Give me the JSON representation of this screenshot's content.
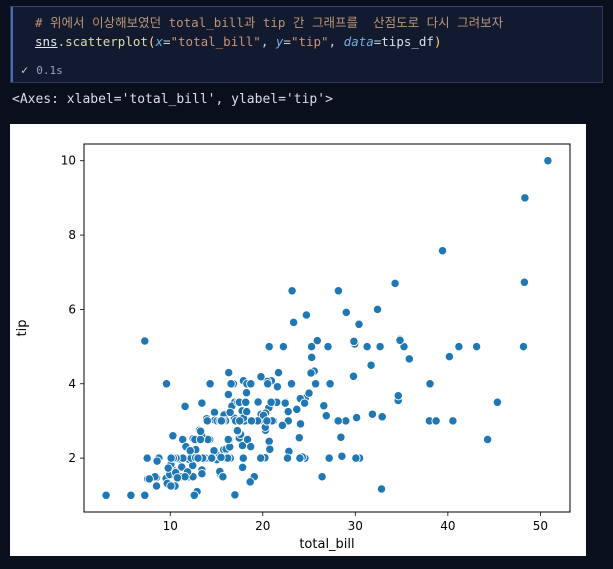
{
  "notebook": {
    "cell": {
      "exec_check": "✓",
      "exec_time": "0.1s"
    },
    "output_text": "<Axes: xlabel='total_bill', ylabel='tip'>"
  },
  "code": {
    "token_colors": {
      "comment": "#bb9577",
      "module": "#e4e6eb",
      "plain": "#d4d4d4",
      "func": "#dcdcaa",
      "paren": "#ffd866",
      "kwarg": "#74aee8",
      "op": "#d4d4d4",
      "string": "#ce9178",
      "var": "#d6deeb"
    },
    "lines": [
      [
        {
          "t": "# 위에서 이상해보였던 total_bill과 tip 간 그래프를  산점도로 다시 그려보자",
          "c": "comment"
        }
      ],
      [
        {
          "t": "sns",
          "c": "module"
        },
        {
          "t": ".",
          "c": "plain"
        },
        {
          "t": "scatterplot",
          "c": "func"
        },
        {
          "t": "(",
          "c": "paren"
        },
        {
          "t": "x",
          "c": "kwarg"
        },
        {
          "t": "=",
          "c": "op"
        },
        {
          "t": "\"total_bill\"",
          "c": "string"
        },
        {
          "t": ", ",
          "c": "plain"
        },
        {
          "t": "y",
          "c": "kwarg"
        },
        {
          "t": "=",
          "c": "op"
        },
        {
          "t": "\"tip\"",
          "c": "string"
        },
        {
          "t": ", ",
          "c": "plain"
        },
        {
          "t": "data",
          "c": "kwarg"
        },
        {
          "t": "=",
          "c": "op"
        },
        {
          "t": "tips_df",
          "c": "var"
        },
        {
          "t": ")",
          "c": "paren"
        }
      ]
    ]
  },
  "chart_data": {
    "type": "scatter",
    "title": "",
    "xlabel": "total_bill",
    "ylabel": "tip",
    "xlim": [
      0.68,
      53.2
    ],
    "ylim": [
      0.55,
      10.45
    ],
    "x_ticks": [
      10,
      20,
      30,
      40,
      50
    ],
    "y_ticks": [
      2,
      4,
      6,
      8,
      10
    ],
    "grid": false,
    "legend": false,
    "marker_color": "#1f77b4",
    "marker_edge_color": "#ffffff",
    "background": "#ffffff",
    "points": [
      [
        16.99,
        1.01
      ],
      [
        10.34,
        1.66
      ],
      [
        21.01,
        3.5
      ],
      [
        23.68,
        3.31
      ],
      [
        24.59,
        3.61
      ],
      [
        25.29,
        4.71
      ],
      [
        8.77,
        2.0
      ],
      [
        26.88,
        3.12
      ],
      [
        15.04,
        1.96
      ],
      [
        14.78,
        3.23
      ],
      [
        10.27,
        1.71
      ],
      [
        35.26,
        5.0
      ],
      [
        15.42,
        1.57
      ],
      [
        18.43,
        3.0
      ],
      [
        14.83,
        3.02
      ],
      [
        21.58,
        3.92
      ],
      [
        10.33,
        1.67
      ],
      [
        16.29,
        3.71
      ],
      [
        16.97,
        3.5
      ],
      [
        20.65,
        3.35
      ],
      [
        17.92,
        4.08
      ],
      [
        20.29,
        2.75
      ],
      [
        15.77,
        2.23
      ],
      [
        39.42,
        7.58
      ],
      [
        19.82,
        3.18
      ],
      [
        17.81,
        2.34
      ],
      [
        13.37,
        2.0
      ],
      [
        12.69,
        2.0
      ],
      [
        21.7,
        4.3
      ],
      [
        19.65,
        3.0
      ],
      [
        9.55,
        1.45
      ],
      [
        18.35,
        2.5
      ],
      [
        15.06,
        3.0
      ],
      [
        20.69,
        2.45
      ],
      [
        17.78,
        3.27
      ],
      [
        24.06,
        3.6
      ],
      [
        16.31,
        2.0
      ],
      [
        16.93,
        3.07
      ],
      [
        18.69,
        2.31
      ],
      [
        31.27,
        5.0
      ],
      [
        16.04,
        2.24
      ],
      [
        17.46,
        2.54
      ],
      [
        13.94,
        3.06
      ],
      [
        9.68,
        1.32
      ],
      [
        30.4,
        5.6
      ],
      [
        18.29,
        3.0
      ],
      [
        22.23,
        5.0
      ],
      [
        32.4,
        6.0
      ],
      [
        28.55,
        2.05
      ],
      [
        18.04,
        3.0
      ],
      [
        12.54,
        2.5
      ],
      [
        10.29,
        2.6
      ],
      [
        34.81,
        5.2
      ],
      [
        9.94,
        1.56
      ],
      [
        25.56,
        4.34
      ],
      [
        19.49,
        3.51
      ],
      [
        38.01,
        3.0
      ],
      [
        26.41,
        1.5
      ],
      [
        11.24,
        1.76
      ],
      [
        48.27,
        6.73
      ],
      [
        20.29,
        3.21
      ],
      [
        13.81,
        2.0
      ],
      [
        11.02,
        1.98
      ],
      [
        18.29,
        3.76
      ],
      [
        17.59,
        2.64
      ],
      [
        20.08,
        3.15
      ],
      [
        16.45,
        2.47
      ],
      [
        3.07,
        1.0
      ],
      [
        20.23,
        2.01
      ],
      [
        15.01,
        2.09
      ],
      [
        12.02,
        1.97
      ],
      [
        17.07,
        3.0
      ],
      [
        26.86,
        3.14
      ],
      [
        25.28,
        5.0
      ],
      [
        14.73,
        2.2
      ],
      [
        10.51,
        1.25
      ],
      [
        17.92,
        3.08
      ],
      [
        27.2,
        4.0
      ],
      [
        22.76,
        3.0
      ],
      [
        17.29,
        2.71
      ],
      [
        19.44,
        3.0
      ],
      [
        16.66,
        3.4
      ],
      [
        10.07,
        1.83
      ],
      [
        32.68,
        5.0
      ],
      [
        15.98,
        2.03
      ],
      [
        34.83,
        5.17
      ],
      [
        13.03,
        2.0
      ],
      [
        18.28,
        4.0
      ],
      [
        24.71,
        5.85
      ],
      [
        21.16,
        3.0
      ],
      [
        28.97,
        3.0
      ],
      [
        22.49,
        3.5
      ],
      [
        5.75,
        1.0
      ],
      [
        16.32,
        4.3
      ],
      [
        22.75,
        3.25
      ],
      [
        40.17,
        4.73
      ],
      [
        27.28,
        4.0
      ],
      [
        12.03,
        1.5
      ],
      [
        21.01,
        3.0
      ],
      [
        12.46,
        1.5
      ],
      [
        11.35,
        2.5
      ],
      [
        15.38,
        3.0
      ],
      [
        44.3,
        2.5
      ],
      [
        22.42,
        3.48
      ],
      [
        20.92,
        4.08
      ],
      [
        15.36,
        1.64
      ],
      [
        20.49,
        4.06
      ],
      [
        25.21,
        4.29
      ],
      [
        18.24,
        3.76
      ],
      [
        14.31,
        4.0
      ],
      [
        14.0,
        3.0
      ],
      [
        7.25,
        1.0
      ],
      [
        38.07,
        4.0
      ],
      [
        23.95,
        2.55
      ],
      [
        25.71,
        4.0
      ],
      [
        17.31,
        3.5
      ],
      [
        29.93,
        5.07
      ],
      [
        10.65,
        1.5
      ],
      [
        12.43,
        1.8
      ],
      [
        24.08,
        2.92
      ],
      [
        11.69,
        2.31
      ],
      [
        13.42,
        1.68
      ],
      [
        14.26,
        2.5
      ],
      [
        15.95,
        2.0
      ],
      [
        12.48,
        2.52
      ],
      [
        29.8,
        4.2
      ],
      [
        8.52,
        1.48
      ],
      [
        14.52,
        2.0
      ],
      [
        11.38,
        2.0
      ],
      [
        22.82,
        2.18
      ],
      [
        19.08,
        1.5
      ],
      [
        20.27,
        2.83
      ],
      [
        11.17,
        1.5
      ],
      [
        12.26,
        2.0
      ],
      [
        18.26,
        3.25
      ],
      [
        8.51,
        1.25
      ],
      [
        10.33,
        2.0
      ],
      [
        14.15,
        2.0
      ],
      [
        16.0,
        2.0
      ],
      [
        13.16,
        2.75
      ],
      [
        17.47,
        3.5
      ],
      [
        34.3,
        6.7
      ],
      [
        41.19,
        5.0
      ],
      [
        27.05,
        5.0
      ],
      [
        16.43,
        2.3
      ],
      [
        8.35,
        1.5
      ],
      [
        18.64,
        1.36
      ],
      [
        11.87,
        1.63
      ],
      [
        9.78,
        1.73
      ],
      [
        7.51,
        2.0
      ],
      [
        14.07,
        2.5
      ],
      [
        13.13,
        2.0
      ],
      [
        17.26,
        2.74
      ],
      [
        24.55,
        2.0
      ],
      [
        19.77,
        2.0
      ],
      [
        29.85,
        5.14
      ],
      [
        48.17,
        5.0
      ],
      [
        25.0,
        3.75
      ],
      [
        13.39,
        2.61
      ],
      [
        16.49,
        2.0
      ],
      [
        21.5,
        3.5
      ],
      [
        12.66,
        2.5
      ],
      [
        16.21,
        2.0
      ],
      [
        13.81,
        2.0
      ],
      [
        17.51,
        3.0
      ],
      [
        24.52,
        3.48
      ],
      [
        20.76,
        2.24
      ],
      [
        31.71,
        4.5
      ],
      [
        10.59,
        1.61
      ],
      [
        10.63,
        2.0
      ],
      [
        50.81,
        10.0
      ],
      [
        15.81,
        3.16
      ],
      [
        7.25,
        5.15
      ],
      [
        31.85,
        3.18
      ],
      [
        16.82,
        4.0
      ],
      [
        32.9,
        3.11
      ],
      [
        17.89,
        2.0
      ],
      [
        14.48,
        2.0
      ],
      [
        9.6,
        4.0
      ],
      [
        34.63,
        3.55
      ],
      [
        34.65,
        3.68
      ],
      [
        23.33,
        5.65
      ],
      [
        45.35,
        3.5
      ],
      [
        23.17,
        6.5
      ],
      [
        40.55,
        3.0
      ],
      [
        20.69,
        5.0
      ],
      [
        20.9,
        3.5
      ],
      [
        30.46,
        2.0
      ],
      [
        18.15,
        3.5
      ],
      [
        23.1,
        4.0
      ],
      [
        15.69,
        1.5
      ],
      [
        19.81,
        4.19
      ],
      [
        28.44,
        2.56
      ],
      [
        15.48,
        2.02
      ],
      [
        16.58,
        4.0
      ],
      [
        7.56,
        1.44
      ],
      [
        10.34,
        2.0
      ],
      [
        43.11,
        5.0
      ],
      [
        13.0,
        2.0
      ],
      [
        13.51,
        2.0
      ],
      [
        18.71,
        4.0
      ],
      [
        12.74,
        2.01
      ],
      [
        13.0,
        2.0
      ],
      [
        16.4,
        2.5
      ],
      [
        20.53,
        4.0
      ],
      [
        16.47,
        3.23
      ],
      [
        26.59,
        3.41
      ],
      [
        38.73,
        3.0
      ],
      [
        24.27,
        2.03
      ],
      [
        12.76,
        2.23
      ],
      [
        30.06,
        2.0
      ],
      [
        25.89,
        5.16
      ],
      [
        48.33,
        9.0
      ],
      [
        13.27,
        2.5
      ],
      [
        28.17,
        6.5
      ],
      [
        12.9,
        1.1
      ],
      [
        28.15,
        3.0
      ],
      [
        11.59,
        1.5
      ],
      [
        7.74,
        1.44
      ],
      [
        30.14,
        3.09
      ],
      [
        12.16,
        2.2
      ],
      [
        13.42,
        3.48
      ],
      [
        8.58,
        1.92
      ],
      [
        15.98,
        3.0
      ],
      [
        13.42,
        1.58
      ],
      [
        16.27,
        2.5
      ],
      [
        10.09,
        2.0
      ],
      [
        20.45,
        3.0
      ],
      [
        13.28,
        2.72
      ],
      [
        22.12,
        2.88
      ],
      [
        24.01,
        2.0
      ],
      [
        15.69,
        3.0
      ],
      [
        11.61,
        3.39
      ],
      [
        10.77,
        1.47
      ],
      [
        15.53,
        3.0
      ],
      [
        10.07,
        1.25
      ],
      [
        12.6,
        1.0
      ],
      [
        32.83,
        1.17
      ],
      [
        35.83,
        4.67
      ],
      [
        29.03,
        5.92
      ],
      [
        27.18,
        2.0
      ],
      [
        22.67,
        2.0
      ],
      [
        17.82,
        1.75
      ],
      [
        18.78,
        3.0
      ]
    ]
  },
  "colors": {
    "page_bg": "#0a0f1e",
    "cell_bg": "#111a2e",
    "cell_border": "#2c3858",
    "cell_accent": "#3e6fb8",
    "output_text": "#d8dee9",
    "figure_bg": "#ffffff",
    "axis_color": "#000000"
  }
}
